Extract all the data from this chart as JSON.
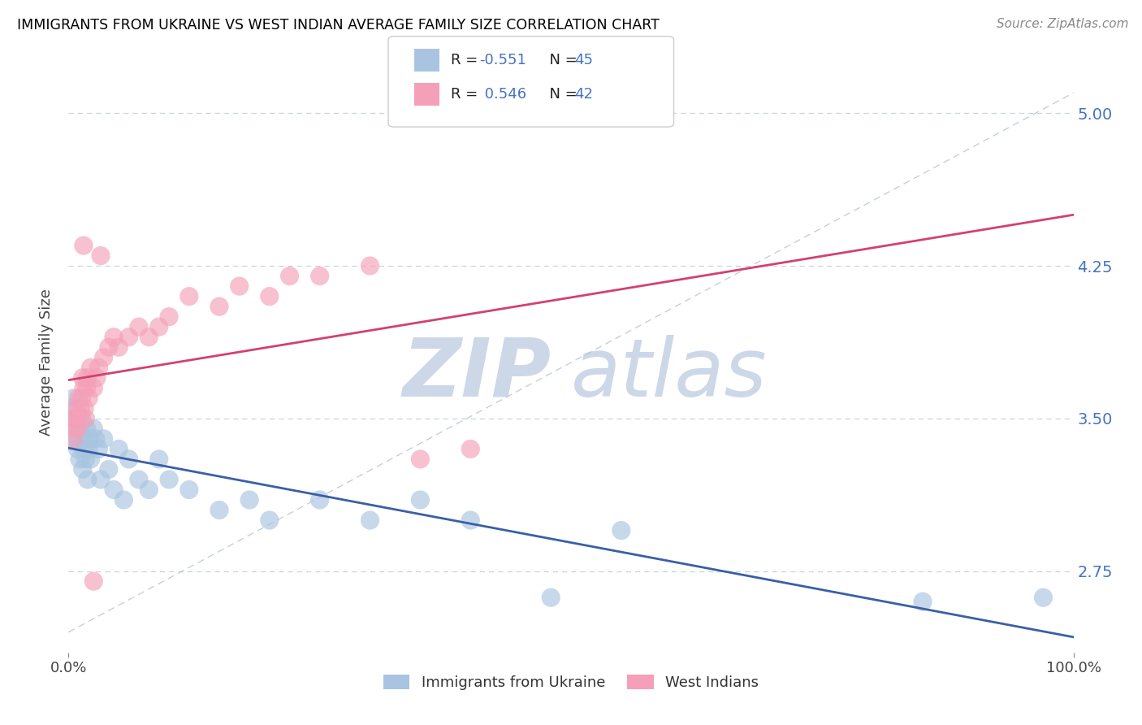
{
  "title": "IMMIGRANTS FROM UKRAINE VS WEST INDIAN AVERAGE FAMILY SIZE CORRELATION CHART",
  "source": "Source: ZipAtlas.com",
  "ylabel": "Average Family Size",
  "xlim": [
    0,
    100
  ],
  "ylim": [
    2.35,
    5.2
  ],
  "yticks": [
    2.75,
    3.5,
    4.25,
    5.0
  ],
  "ukraine_color": "#a8c4e0",
  "ukraine_line_color": "#3a5fa8",
  "westindian_color": "#f4a0b8",
  "westindian_line_color": "#d44070",
  "ukraine_R": -0.551,
  "ukraine_N": 45,
  "westindian_R": 0.546,
  "westindian_N": 42,
  "ukraine_x": [
    0.3,
    0.5,
    0.6,
    0.7,
    0.8,
    0.9,
    1.0,
    1.1,
    1.2,
    1.3,
    1.4,
    1.5,
    1.6,
    1.7,
    1.8,
    1.9,
    2.0,
    2.1,
    2.2,
    2.5,
    2.7,
    3.0,
    3.2,
    3.5,
    4.0,
    4.5,
    5.0,
    5.5,
    6.0,
    7.0,
    8.0,
    9.0,
    10.0,
    12.0,
    15.0,
    18.0,
    20.0,
    25.0,
    30.0,
    35.0,
    40.0,
    48.0,
    55.0,
    85.0,
    97.0
  ],
  "ukraine_y": [
    3.55,
    3.6,
    3.4,
    3.5,
    3.45,
    3.35,
    3.4,
    3.3,
    3.45,
    3.5,
    3.25,
    3.35,
    3.4,
    3.3,
    3.45,
    3.2,
    3.35,
    3.4,
    3.3,
    3.45,
    3.4,
    3.35,
    3.2,
    3.4,
    3.25,
    3.15,
    3.35,
    3.1,
    3.3,
    3.2,
    3.15,
    3.3,
    3.2,
    3.15,
    3.05,
    3.1,
    3.0,
    3.1,
    3.0,
    3.1,
    3.0,
    2.62,
    2.95,
    2.6,
    2.62
  ],
  "westindian_x": [
    0.3,
    0.5,
    0.6,
    0.7,
    0.8,
    0.9,
    1.0,
    1.1,
    1.2,
    1.3,
    1.4,
    1.5,
    1.6,
    1.7,
    1.8,
    1.9,
    2.0,
    2.2,
    2.5,
    2.8,
    3.0,
    3.5,
    4.0,
    4.5,
    5.0,
    6.0,
    7.0,
    8.0,
    9.0,
    10.0,
    12.0,
    15.0,
    17.0,
    20.0,
    22.0,
    25.0,
    30.0,
    35.0,
    40.0,
    2.5,
    3.2,
    1.5
  ],
  "westindian_y": [
    3.5,
    3.4,
    3.45,
    3.5,
    3.55,
    3.45,
    3.6,
    3.5,
    3.55,
    3.6,
    3.7,
    3.65,
    3.55,
    3.5,
    3.65,
    3.7,
    3.6,
    3.75,
    3.65,
    3.7,
    3.75,
    3.8,
    3.85,
    3.9,
    3.85,
    3.9,
    3.95,
    3.9,
    3.95,
    4.0,
    4.1,
    4.05,
    4.15,
    4.1,
    4.2,
    4.2,
    4.25,
    3.3,
    3.35,
    2.7,
    4.3,
    4.35
  ],
  "watermark_zi": "ZIP",
  "watermark_atlas": "atlas",
  "watermark_color": "#ccd8e8",
  "background_color": "#ffffff",
  "grid_color": "#c8d4dc",
  "title_color": "#000000",
  "right_ytick_color": "#4472c4",
  "legend_R_color": "#4472c4",
  "legend_N_color": "#4472c4"
}
